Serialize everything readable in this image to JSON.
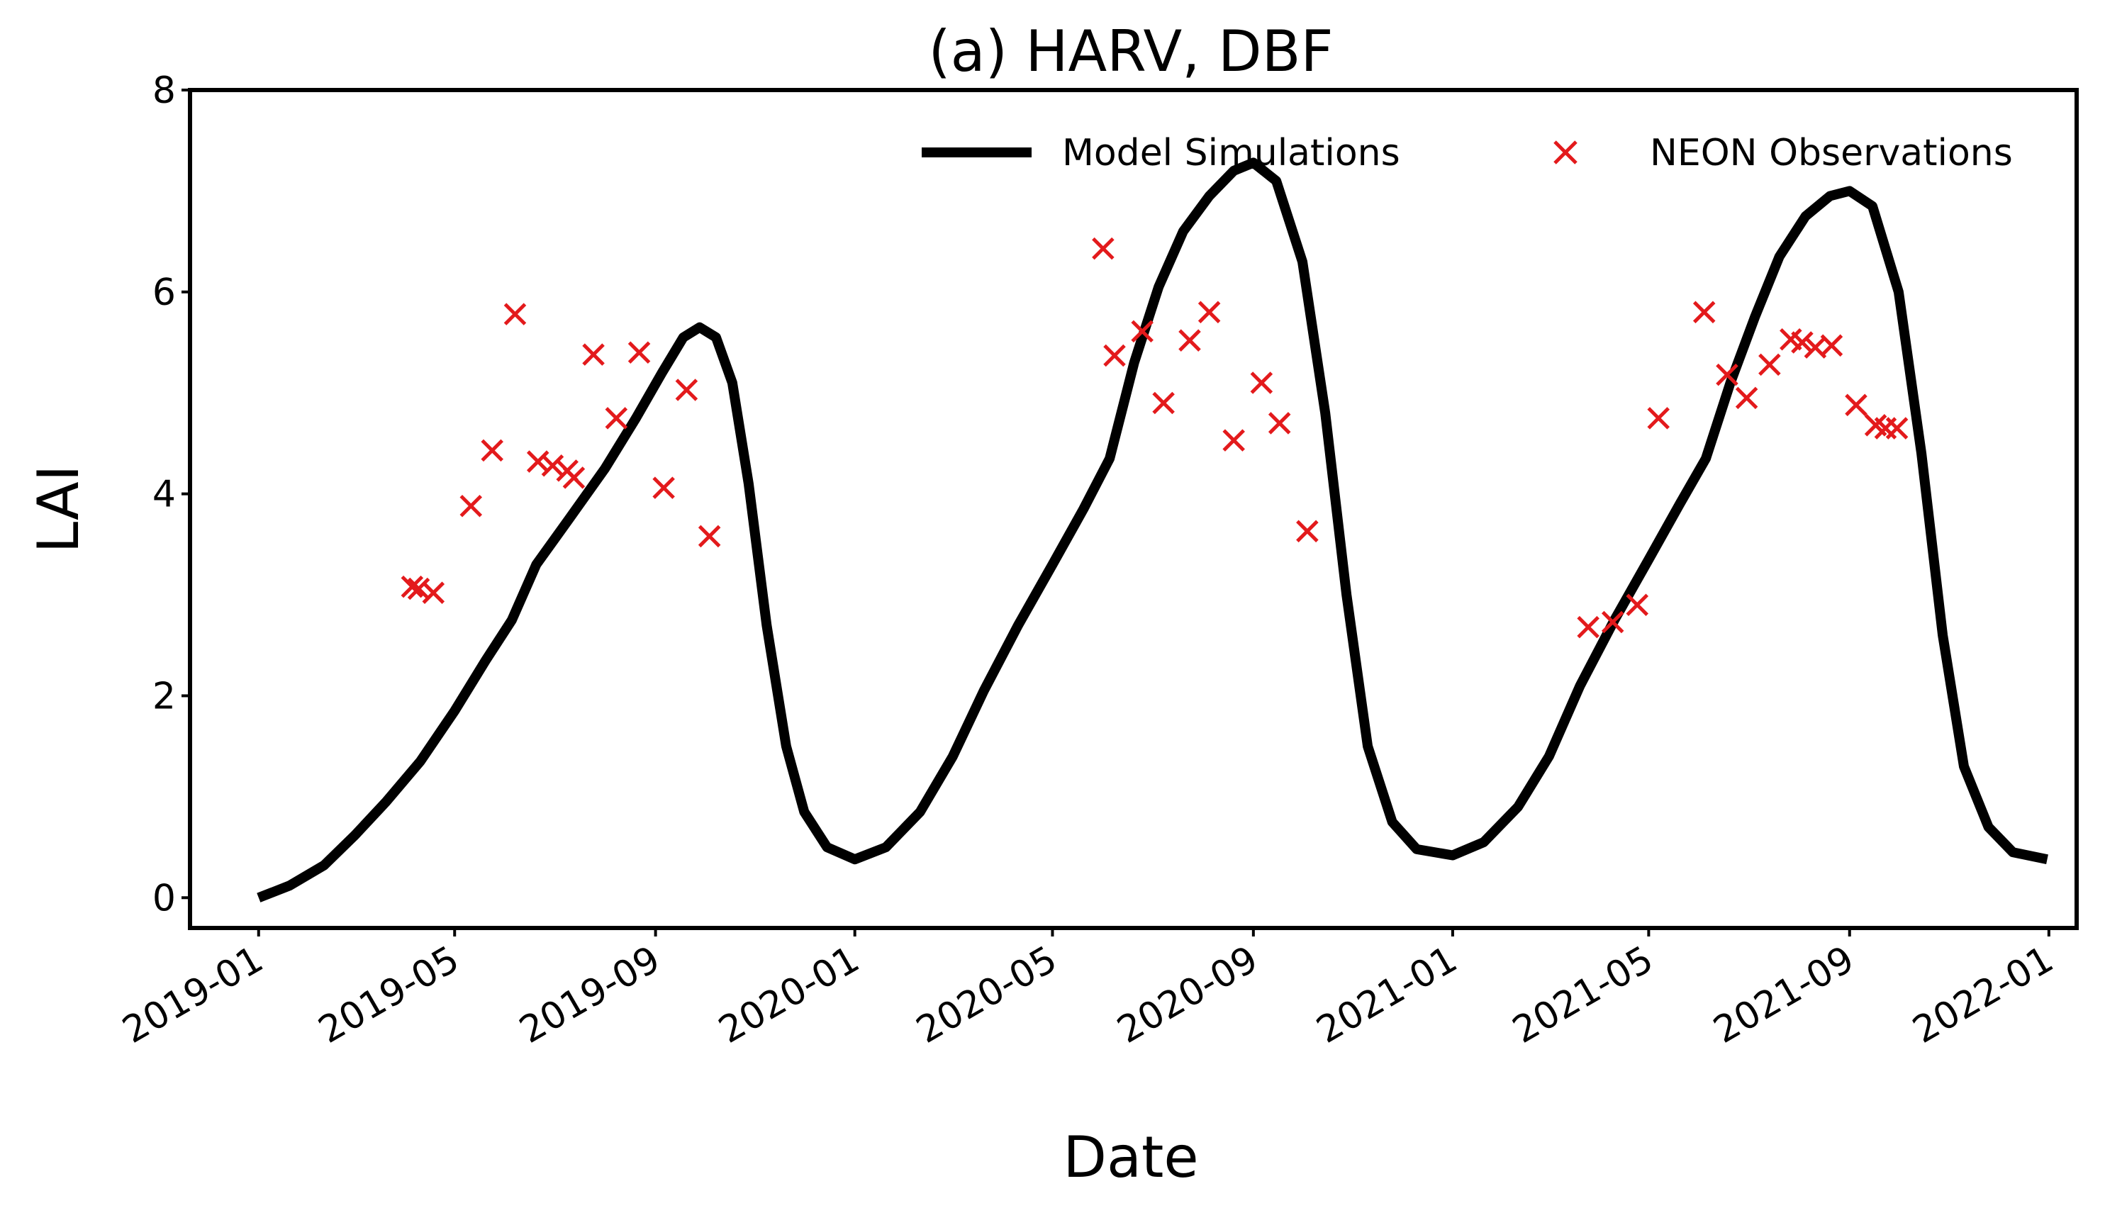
{
  "chart_data": {
    "type": "line",
    "title": "(a) HARV, DBF",
    "xlabel": "Date",
    "ylabel": "LAI",
    "xlim": [
      "2018-11-20",
      "2022-01-18"
    ],
    "ylim": [
      -0.3,
      8
    ],
    "x_ticks": [
      "2019-01",
      "2019-05",
      "2019-09",
      "2020-01",
      "2020-05",
      "2020-09",
      "2021-01",
      "2021-05",
      "2021-09",
      "2022-01"
    ],
    "y_ticks": [
      0,
      2,
      4,
      6,
      8
    ],
    "legend_position": "top-right",
    "grid": false,
    "series": [
      {
        "name": "Model Simulations",
        "kind": "line",
        "color": "#000000",
        "points": [
          [
            "2019-01-01",
            0.0
          ],
          [
            "2019-01-20",
            0.12
          ],
          [
            "2019-02-10",
            0.32
          ],
          [
            "2019-03-01",
            0.62
          ],
          [
            "2019-03-20",
            0.95
          ],
          [
            "2019-04-10",
            1.35
          ],
          [
            "2019-05-01",
            1.85
          ],
          [
            "2019-05-20",
            2.35
          ],
          [
            "2019-06-05",
            2.75
          ],
          [
            "2019-06-20",
            3.3
          ],
          [
            "2019-07-10",
            3.75
          ],
          [
            "2019-08-01",
            4.25
          ],
          [
            "2019-08-20",
            4.75
          ],
          [
            "2019-09-05",
            5.2
          ],
          [
            "2019-09-18",
            5.55
          ],
          [
            "2019-09-28",
            5.65
          ],
          [
            "2019-10-08",
            5.55
          ],
          [
            "2019-10-18",
            5.1
          ],
          [
            "2019-10-28",
            4.1
          ],
          [
            "2019-11-08",
            2.7
          ],
          [
            "2019-11-20",
            1.5
          ],
          [
            "2019-12-01",
            0.85
          ],
          [
            "2019-12-15",
            0.5
          ],
          [
            "2020-01-01",
            0.38
          ],
          [
            "2020-01-20",
            0.5
          ],
          [
            "2020-02-10",
            0.85
          ],
          [
            "2020-03-01",
            1.4
          ],
          [
            "2020-03-20",
            2.05
          ],
          [
            "2020-04-10",
            2.7
          ],
          [
            "2020-05-01",
            3.3
          ],
          [
            "2020-05-20",
            3.85
          ],
          [
            "2020-06-05",
            4.35
          ],
          [
            "2020-06-20",
            5.3
          ],
          [
            "2020-07-05",
            6.05
          ],
          [
            "2020-07-20",
            6.6
          ],
          [
            "2020-08-05",
            6.95
          ],
          [
            "2020-08-20",
            7.2
          ],
          [
            "2020-09-01",
            7.28
          ],
          [
            "2020-09-15",
            7.1
          ],
          [
            "2020-10-01",
            6.3
          ],
          [
            "2020-10-15",
            4.8
          ],
          [
            "2020-10-28",
            3.0
          ],
          [
            "2020-11-10",
            1.5
          ],
          [
            "2020-11-25",
            0.75
          ],
          [
            "2020-12-10",
            0.48
          ],
          [
            "2021-01-01",
            0.42
          ],
          [
            "2021-01-20",
            0.55
          ],
          [
            "2021-02-10",
            0.9
          ],
          [
            "2021-03-01",
            1.4
          ],
          [
            "2021-03-20",
            2.1
          ],
          [
            "2021-04-10",
            2.75
          ],
          [
            "2021-05-01",
            3.35
          ],
          [
            "2021-05-20",
            3.9
          ],
          [
            "2021-06-05",
            4.35
          ],
          [
            "2021-06-20",
            5.1
          ],
          [
            "2021-07-05",
            5.75
          ],
          [
            "2021-07-20",
            6.35
          ],
          [
            "2021-08-05",
            6.75
          ],
          [
            "2021-08-20",
            6.95
          ],
          [
            "2021-09-01",
            7.0
          ],
          [
            "2021-09-15",
            6.85
          ],
          [
            "2021-10-01",
            6.0
          ],
          [
            "2021-10-15",
            4.4
          ],
          [
            "2021-10-28",
            2.6
          ],
          [
            "2021-11-10",
            1.3
          ],
          [
            "2021-11-25",
            0.7
          ],
          [
            "2021-12-10",
            0.45
          ],
          [
            "2021-12-31",
            0.38
          ]
        ]
      },
      {
        "name": "NEON Observations",
        "kind": "scatter",
        "color": "#e31a1c",
        "marker": "x",
        "points": [
          [
            "2019-04-05",
            3.08
          ],
          [
            "2019-04-09",
            3.06
          ],
          [
            "2019-04-18",
            3.02
          ],
          [
            "2019-05-11",
            3.88
          ],
          [
            "2019-05-24",
            4.43
          ],
          [
            "2019-06-07",
            5.78
          ],
          [
            "2019-06-21",
            4.32
          ],
          [
            "2019-06-30",
            4.28
          ],
          [
            "2019-07-09",
            4.23
          ],
          [
            "2019-07-13",
            4.16
          ],
          [
            "2019-07-25",
            5.38
          ],
          [
            "2019-08-08",
            4.75
          ],
          [
            "2019-08-22",
            5.4
          ],
          [
            "2019-09-06",
            4.06
          ],
          [
            "2019-09-20",
            5.03
          ],
          [
            "2019-10-04",
            3.58
          ],
          [
            "2020-06-01",
            6.43
          ],
          [
            "2020-06-08",
            5.37
          ],
          [
            "2020-06-25",
            5.61
          ],
          [
            "2020-07-08",
            4.9
          ],
          [
            "2020-07-24",
            5.52
          ],
          [
            "2020-08-05",
            5.8
          ],
          [
            "2020-08-20",
            4.53
          ],
          [
            "2020-09-06",
            5.1
          ],
          [
            "2020-09-17",
            4.7
          ],
          [
            "2020-10-04",
            3.63
          ],
          [
            "2021-03-25",
            2.68
          ],
          [
            "2021-04-09",
            2.73
          ],
          [
            "2021-04-24",
            2.9
          ],
          [
            "2021-05-07",
            4.75
          ],
          [
            "2021-06-04",
            5.8
          ],
          [
            "2021-06-18",
            5.18
          ],
          [
            "2021-06-30",
            4.95
          ],
          [
            "2021-07-14",
            5.28
          ],
          [
            "2021-07-27",
            5.53
          ],
          [
            "2021-08-03",
            5.5
          ],
          [
            "2021-08-11",
            5.45
          ],
          [
            "2021-08-21",
            5.47
          ],
          [
            "2021-09-05",
            4.88
          ],
          [
            "2021-09-17",
            4.68
          ],
          [
            "2021-09-23",
            4.65
          ],
          [
            "2021-09-30",
            4.65
          ]
        ]
      }
    ]
  }
}
